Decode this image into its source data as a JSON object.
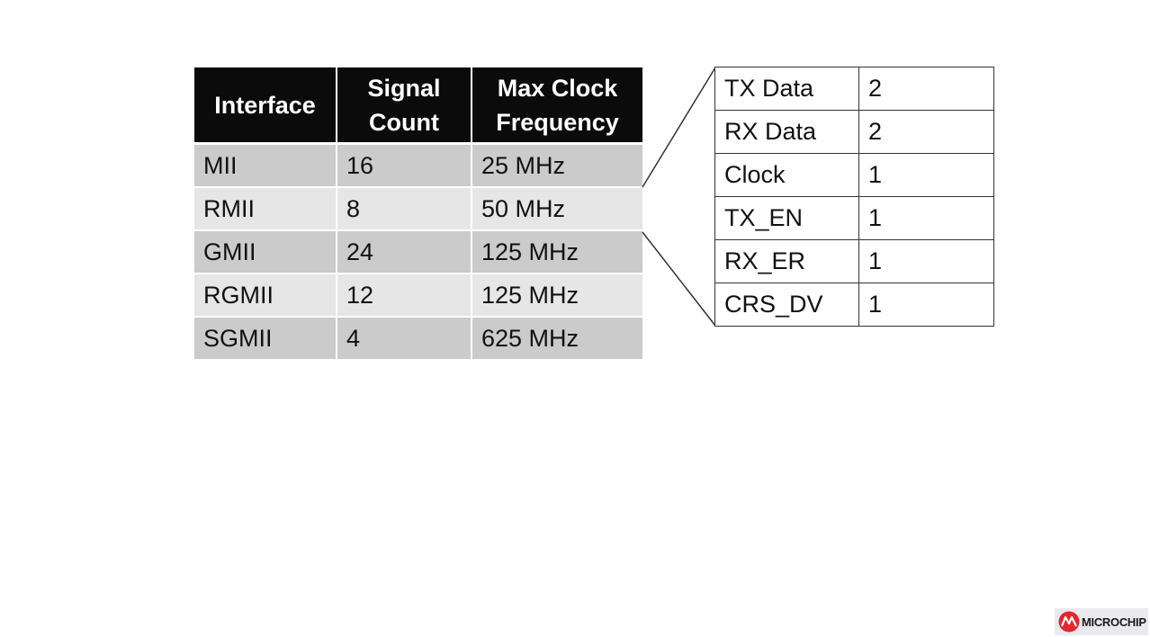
{
  "main_table": {
    "headers": [
      [
        "Interface"
      ],
      [
        "Signal",
        "Count"
      ],
      [
        "Max Clock",
        "Frequency"
      ]
    ],
    "rows": [
      [
        "MII",
        "16",
        "25 MHz"
      ],
      [
        "RMII",
        "8",
        "50 MHz"
      ],
      [
        "GMII",
        "24",
        "125 MHz"
      ],
      [
        "RGMII",
        "12",
        "125 MHz"
      ],
      [
        "SGMII",
        "4",
        "625 MHz"
      ]
    ]
  },
  "detail_table": {
    "rows": [
      [
        "TX Data",
        "2"
      ],
      [
        "RX Data",
        "2"
      ],
      [
        "Clock",
        "1"
      ],
      [
        "TX_EN",
        "1"
      ],
      [
        "RX_ER",
        "1"
      ],
      [
        "CRS_DV",
        "1"
      ]
    ]
  },
  "logo": {
    "text": "MICROCHIP",
    "color": "#e3272b"
  }
}
